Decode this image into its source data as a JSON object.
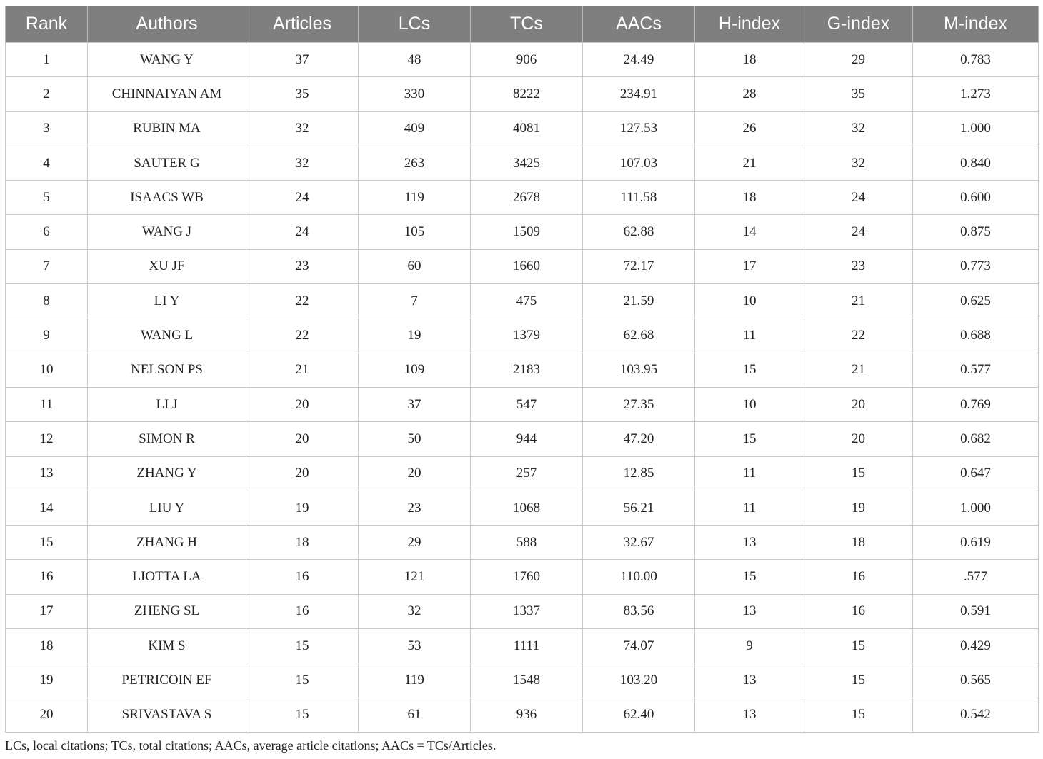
{
  "table": {
    "headers": [
      "Rank",
      "Authors",
      "Articles",
      "LCs",
      "TCs",
      "AACs",
      "H-index",
      "G-index",
      "M-index"
    ],
    "rows": [
      [
        "1",
        "WANG Y",
        "37",
        "48",
        "906",
        "24.49",
        "18",
        "29",
        "0.783"
      ],
      [
        "2",
        "CHINNAIYAN AM",
        "35",
        "330",
        "8222",
        "234.91",
        "28",
        "35",
        "1.273"
      ],
      [
        "3",
        "RUBIN MA",
        "32",
        "409",
        "4081",
        "127.53",
        "26",
        "32",
        "1.000"
      ],
      [
        "4",
        "SAUTER G",
        "32",
        "263",
        "3425",
        "107.03",
        "21",
        "32",
        "0.840"
      ],
      [
        "5",
        "ISAACS WB",
        "24",
        "119",
        "2678",
        "111.58",
        "18",
        "24",
        "0.600"
      ],
      [
        "6",
        "WANG J",
        "24",
        "105",
        "1509",
        "62.88",
        "14",
        "24",
        "0.875"
      ],
      [
        "7",
        "XU JF",
        "23",
        "60",
        "1660",
        "72.17",
        "17",
        "23",
        "0.773"
      ],
      [
        "8",
        "LI Y",
        "22",
        "7",
        "475",
        "21.59",
        "10",
        "21",
        "0.625"
      ],
      [
        "9",
        "WANG L",
        "22",
        "19",
        "1379",
        "62.68",
        "11",
        "22",
        "0.688"
      ],
      [
        "10",
        "NELSON PS",
        "21",
        "109",
        "2183",
        "103.95",
        "15",
        "21",
        "0.577"
      ],
      [
        "11",
        "LI J",
        "20",
        "37",
        "547",
        "27.35",
        "10",
        "20",
        "0.769"
      ],
      [
        "12",
        "SIMON R",
        "20",
        "50",
        "944",
        "47.20",
        "15",
        "20",
        "0.682"
      ],
      [
        "13",
        "ZHANG Y",
        "20",
        "20",
        "257",
        "12.85",
        "11",
        "15",
        "0.647"
      ],
      [
        "14",
        "LIU Y",
        "19",
        "23",
        "1068",
        "56.21",
        "11",
        "19",
        "1.000"
      ],
      [
        "15",
        "ZHANG H",
        "18",
        "29",
        "588",
        "32.67",
        "13",
        "18",
        "0.619"
      ],
      [
        "16",
        "LIOTTA LA",
        "16",
        "121",
        "1760",
        "110.00",
        "15",
        "16",
        ".577"
      ],
      [
        "17",
        "ZHENG SL",
        "16",
        "32",
        "1337",
        "83.56",
        "13",
        "16",
        "0.591"
      ],
      [
        "18",
        "KIM S",
        "15",
        "53",
        "1111",
        "74.07",
        "9",
        "15",
        "0.429"
      ],
      [
        "19",
        "PETRICOIN EF",
        "15",
        "119",
        "1548",
        "103.20",
        "13",
        "15",
        "0.565"
      ],
      [
        "20",
        "SRIVASTAVA S",
        "15",
        "61",
        "936",
        "62.40",
        "13",
        "15",
        "0.542"
      ]
    ]
  },
  "footnote": "LCs, local citations; TCs, total citations; AACs, average article citations; AACs = TCs/Articles.",
  "colors": {
    "header_bg": "#7f7f7f",
    "header_text": "#ffffff",
    "grid_line": "#c9c9c9"
  }
}
